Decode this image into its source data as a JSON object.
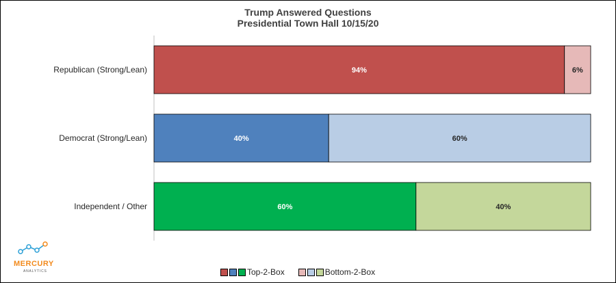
{
  "chart_data": {
    "type": "bar",
    "orientation": "horizontal",
    "stacked": true,
    "title": "Trump Answered Questions",
    "subtitle": "Presidential Town Hall 10/15/20",
    "categories": [
      "Republican (Strong/Lean)",
      "Democrat (Strong/Lean)",
      "Independent / Other"
    ],
    "series": [
      {
        "name": "Top-2-Box",
        "values": [
          94,
          40,
          60
        ],
        "labels": [
          "94%",
          "40%",
          "60%"
        ],
        "colors": [
          "#c0504d",
          "#4f81bd",
          "#00b050"
        ],
        "label_color": "#ffffff"
      },
      {
        "name": "Bottom-2-Box",
        "values": [
          6,
          60,
          40
        ],
        "labels": [
          "6%",
          "60%",
          "40%"
        ],
        "colors": [
          "#e6b9b8",
          "#b9cde5",
          "#c4d79b"
        ],
        "label_color": "#262626"
      }
    ],
    "xlim": [
      0,
      100
    ],
    "grid": false,
    "legend_position": "bottom"
  },
  "legend": {
    "top_label": "Top-2-Box",
    "bottom_label": "Bottom-2-Box"
  },
  "logo": {
    "name": "MERCURY",
    "sub": "ANALYTICS"
  }
}
